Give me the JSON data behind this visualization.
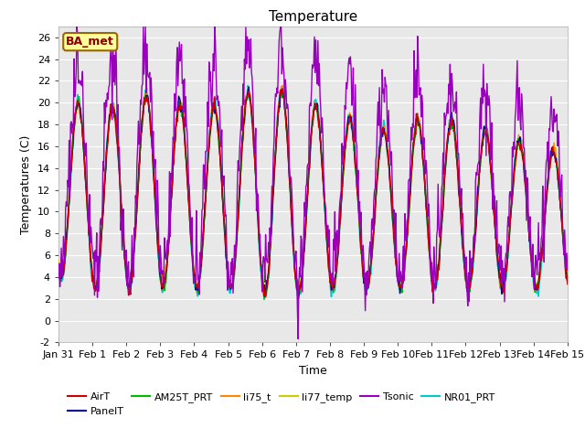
{
  "title": "Temperature",
  "xlabel": "Time",
  "ylabel": "Temperatures (C)",
  "ylim": [
    -2,
    27
  ],
  "xtick_labels": [
    "Jan 31",
    "Feb 1",
    "Feb 2",
    "Feb 3",
    "Feb 4",
    "Feb 5",
    "Feb 6",
    "Feb 7",
    "Feb 8",
    "Feb 9",
    "Feb 10",
    "Feb 11",
    "Feb 12",
    "Feb 13",
    "Feb 14",
    "Feb 15"
  ],
  "ytick_values": [
    -2,
    0,
    2,
    4,
    6,
    8,
    10,
    12,
    14,
    16,
    18,
    20,
    22,
    24,
    26
  ],
  "series": {
    "AirT": {
      "color": "#cc0000",
      "lw": 1.0,
      "zorder": 4
    },
    "PanelT": {
      "color": "#000099",
      "lw": 1.0,
      "zorder": 4
    },
    "AM25T_PRT": {
      "color": "#00bb00",
      "lw": 1.0,
      "zorder": 4
    },
    "li75_t": {
      "color": "#ff8800",
      "lw": 1.0,
      "zorder": 4
    },
    "li77_temp": {
      "color": "#cccc00",
      "lw": 1.2,
      "zorder": 3
    },
    "Tsonic": {
      "color": "#9900bb",
      "lw": 1.0,
      "zorder": 5
    },
    "NR01_PRT": {
      "color": "#00cccc",
      "lw": 1.2,
      "zorder": 3
    }
  },
  "legend_label": "BA_met",
  "legend_label_color": "#880000",
  "legend_label_bg": "#ffff99",
  "legend_label_border": "#996600",
  "plot_bg": "#e8e8e8",
  "grid_color": "#ffffff",
  "title_fontsize": 11,
  "axis_fontsize": 9,
  "tick_fontsize": 8
}
